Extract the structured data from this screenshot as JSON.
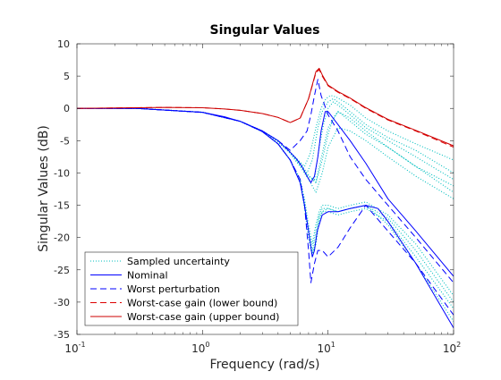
{
  "chart_data": {
    "type": "line",
    "title": "Singular Values",
    "xlabel": "Frequency (rad/s)",
    "ylabel": "Singular Values (dB)",
    "xscale": "log",
    "xlim": [
      0.1,
      100
    ],
    "ylim": [
      -35,
      10
    ],
    "xticks": [
      {
        "value": 0.1,
        "base": "10",
        "exp": "-1"
      },
      {
        "value": 1,
        "base": "10",
        "exp": "0"
      },
      {
        "value": 10,
        "base": "10",
        "exp": "1"
      },
      {
        "value": 100,
        "base": "10",
        "exp": "2"
      }
    ],
    "yticks": [
      10,
      5,
      0,
      -5,
      -10,
      -15,
      -20,
      -25,
      -30,
      -35
    ],
    "grid": false,
    "legend_position": "bottom-left",
    "series": [
      {
        "name": "Sampled uncertainty",
        "color": "#00bfbf",
        "style": "dotted",
        "curves": [
          {
            "x": [
              0.1,
              0.3,
              1,
              2,
              3,
              4,
              5,
              6,
              6.8,
              7.5,
              8.3,
              9,
              10,
              11,
              12,
              15,
              20,
              30,
              50,
              100
            ],
            "y": [
              0,
              0,
              -0.6,
              -2,
              -3.5,
              -5,
              -6.8,
              -8.5,
              -10,
              -8,
              -3,
              -0.5,
              1,
              1.5,
              1,
              -0.5,
              -2.5,
              -4.5,
              -6.5,
              -10
            ]
          },
          {
            "x": [
              0.1,
              0.3,
              1,
              2,
              3,
              4,
              5,
              6,
              7,
              7.8,
              8.5,
              9.2,
              10,
              11,
              12,
              15,
              20,
              30,
              50,
              100
            ],
            "y": [
              0,
              0,
              -0.6,
              -2,
              -3.5,
              -5,
              -6.8,
              -8.8,
              -10.5,
              -11,
              -6,
              -2.5,
              0,
              1,
              0.5,
              -1,
              -3,
              -5,
              -7.5,
              -11
            ]
          },
          {
            "x": [
              0.1,
              0.3,
              1,
              2,
              3,
              4,
              5,
              6,
              7,
              8,
              9,
              10,
              11,
              12,
              13,
              15,
              20,
              30,
              50,
              100
            ],
            "y": [
              0,
              0,
              -0.6,
              -2,
              -3.5,
              -5,
              -6.8,
              -8.8,
              -10.5,
              -11.5,
              -8,
              -4,
              -1.5,
              -0.5,
              -1,
              -2,
              -4,
              -6,
              -9,
              -13
            ]
          },
          {
            "x": [
              0.1,
              0.3,
              1,
              2,
              3,
              4,
              5,
              6,
              6.5,
              7.2,
              8,
              8.8,
              9.6,
              10.5,
              11.5,
              15,
              20,
              30,
              50,
              100
            ],
            "y": [
              0,
              0,
              -0.6,
              -2,
              -3.5,
              -5,
              -6.8,
              -8.3,
              -9,
              -7,
              -3,
              0,
              1.5,
              2,
              1.8,
              0.5,
              -1.5,
              -3.5,
              -5.5,
              -8
            ]
          },
          {
            "x": [
              0.1,
              0.3,
              1,
              2,
              3,
              4,
              5,
              6,
              7,
              8,
              9,
              10,
              12,
              15,
              20,
              30,
              50,
              100
            ],
            "y": [
              0,
              0,
              -0.6,
              -2,
              -3.6,
              -5.2,
              -7,
              -9,
              -11,
              -13,
              -10,
              -6,
              -3,
              -3.5,
              -5,
              -7.5,
              -10.5,
              -14
            ]
          },
          {
            "x": [
              0.1,
              0.3,
              1,
              2,
              3,
              4,
              5,
              6,
              7,
              8,
              9,
              10,
              12,
              15,
              20,
              30,
              50,
              100
            ],
            "y": [
              0,
              0,
              -0.6,
              -2,
              -3.5,
              -5,
              -6.8,
              -8.7,
              -10.4,
              -11.4,
              -7,
              -3,
              -0.5,
              -1.5,
              -3.5,
              -6,
              -9,
              -12
            ]
          },
          {
            "x": [
              0.1,
              0.3,
              1,
              2,
              3,
              4,
              5,
              6,
              6.5,
              7,
              7.5,
              8,
              8.5,
              9,
              10,
              12,
              15,
              20,
              30,
              50,
              100
            ],
            "y": [
              0,
              0,
              -0.6,
              -2,
              -3.6,
              -5.5,
              -8,
              -11,
              -15,
              -19,
              -22,
              -19,
              -16.5,
              -15.5,
              -15.5,
              -16,
              -15.5,
              -15,
              -17,
              -22,
              -30
            ]
          },
          {
            "x": [
              0.1,
              0.3,
              1,
              2,
              3,
              4,
              5,
              6,
              6.5,
              7,
              7.5,
              8,
              8.5,
              9,
              10,
              12,
              15,
              20,
              30,
              50,
              100
            ],
            "y": [
              0,
              0,
              -0.6,
              -2,
              -3.6,
              -5.5,
              -8,
              -11,
              -14,
              -18,
              -21,
              -18,
              -16,
              -15,
              -15,
              -15.5,
              -15,
              -14.5,
              -16.5,
              -21,
              -29
            ]
          },
          {
            "x": [
              0.1,
              0.3,
              1,
              2,
              3,
              4,
              5,
              6,
              6.5,
              7,
              7.5,
              8,
              8.5,
              9,
              10,
              12,
              15,
              20,
              30,
              50,
              100
            ],
            "y": [
              0,
              0,
              -0.6,
              -2,
              -3.6,
              -5.5,
              -8,
              -11.5,
              -15.5,
              -20,
              -23,
              -20,
              -17,
              -16,
              -16,
              -16.5,
              -16,
              -15.5,
              -17.5,
              -23,
              -31
            ]
          },
          {
            "x": [
              0.1,
              0.3,
              1,
              2,
              3,
              4,
              5,
              6,
              6.5,
              7,
              7.5,
              8,
              8.5,
              9,
              10,
              12,
              15,
              20,
              30,
              50,
              100
            ],
            "y": [
              0,
              0,
              -0.6,
              -2,
              -3.6,
              -5.5,
              -8,
              -11,
              -14.5,
              -19,
              -22.5,
              -21,
              -17.5,
              -16,
              -15.5,
              -16,
              -15.5,
              -15,
              -18,
              -24,
              -33
            ]
          }
        ]
      },
      {
        "name": "Nominal",
        "color": "#0000ff",
        "style": "solid",
        "curves": [
          {
            "x": [
              0.1,
              0.3,
              1,
              1.5,
              2,
              3,
              4,
              5,
              5.6,
              6.2,
              6.8,
              7.3,
              7.8,
              8.3,
              8.8,
              9.5,
              10,
              12,
              15,
              20,
              30,
              50,
              100
            ],
            "y": [
              0,
              0,
              -0.6,
              -1.3,
              -2,
              -3.5,
              -5,
              -6.8,
              -7.8,
              -9,
              -10.5,
              -11.5,
              -10.5,
              -7.5,
              -3.5,
              -0.5,
              -0.5,
              -2.5,
              -5,
              -8.5,
              -14,
              -19,
              -26
            ]
          },
          {
            "x": [
              0.1,
              0.3,
              1,
              2,
              3,
              4,
              5,
              6,
              6.5,
              7,
              7.5,
              7.8,
              8.2,
              9,
              10,
              12,
              15,
              20,
              25,
              30,
              50,
              100
            ],
            "y": [
              0,
              0,
              -0.6,
              -2,
              -3.6,
              -5.5,
              -8,
              -11.5,
              -15,
              -19,
              -23,
              -22,
              -19,
              -16.5,
              -16,
              -16,
              -15.5,
              -15,
              -15.5,
              -17.5,
              -24,
              -34
            ]
          }
        ]
      },
      {
        "name": "Worst perturbation",
        "color": "#0000ff",
        "style": "dashed",
        "curves": [
          {
            "x": [
              0.1,
              0.3,
              1,
              2,
              3,
              4,
              5,
              6,
              6.8,
              7.3,
              7.8,
              8.3,
              8.8,
              10,
              12,
              15,
              20,
              30,
              50,
              100
            ],
            "y": [
              0,
              0,
              -0.6,
              -2,
              -3.5,
              -5,
              -6.5,
              -5,
              -3.5,
              -1,
              2,
              4.5,
              2,
              -1,
              -3.5,
              -7.5,
              -11,
              -15,
              -20,
              -27
            ]
          },
          {
            "x": [
              0.1,
              0.3,
              1,
              2,
              3,
              4,
              5,
              6,
              6.5,
              7,
              7.3,
              7.8,
              8.3,
              9,
              10,
              12,
              15,
              20,
              30,
              50,
              100
            ],
            "y": [
              0,
              0,
              -0.6,
              -2,
              -3.6,
              -5.5,
              -8,
              -11,
              -15,
              -22,
              -27,
              -24,
              -22,
              -22,
              -23,
              -21.5,
              -18.5,
              -15,
              -19,
              -24,
              -32
            ]
          }
        ]
      },
      {
        "name": "Worst-case gain (lower bound)",
        "color": "#dd0000",
        "style": "dashed",
        "curves": [
          {
            "x": [
              0.1,
              0.3,
              0.5,
              1,
              1.5,
              2,
              3,
              4,
              5,
              6,
              7,
              8,
              8.5,
              9,
              10,
              12,
              15,
              20,
              30,
              50,
              100
            ],
            "y": [
              0,
              0.1,
              0.15,
              0.1,
              -0.1,
              -0.3,
              -0.8,
              -1.4,
              -2.2,
              -1.5,
              1.5,
              5.5,
              6,
              5,
              3.5,
              2.5,
              1.5,
              0,
              -1.8,
              -3.5,
              -6
            ]
          }
        ]
      },
      {
        "name": "Worst-case gain (upper bound)",
        "color": "#cc0000",
        "style": "solid",
        "curves": [
          {
            "x": [
              0.1,
              0.3,
              0.5,
              1,
              1.5,
              2,
              3,
              4,
              5,
              6,
              7,
              8,
              8.5,
              9,
              10,
              12,
              15,
              20,
              30,
              50,
              100
            ],
            "y": [
              0,
              0.1,
              0.15,
              0.1,
              -0.1,
              -0.3,
              -0.8,
              -1.4,
              -2.2,
              -1.5,
              1.5,
              5.7,
              6.2,
              5.2,
              3.6,
              2.6,
              1.6,
              0.1,
              -1.7,
              -3.4,
              -5.8
            ]
          }
        ]
      }
    ]
  }
}
